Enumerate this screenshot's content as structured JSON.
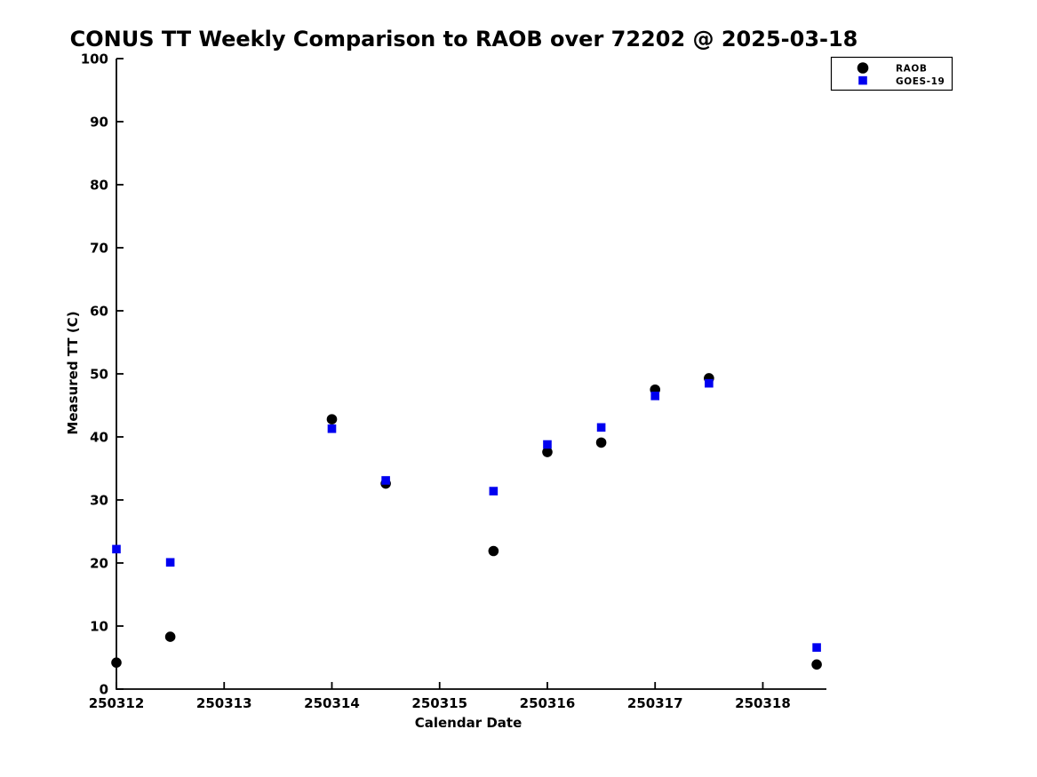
{
  "chart_data": {
    "type": "scatter",
    "title": "CONUS TT Weekly Comparison to RAOB over 72202 @ 2025-03-18",
    "xlabel": "Calendar Date",
    "ylabel": "Measured TT (C)",
    "xlim": [
      250312,
      250318.59
    ],
    "ylim": [
      0,
      100
    ],
    "x_ticks": [
      250312,
      250313,
      250314,
      250315,
      250316,
      250317,
      250318
    ],
    "y_ticks": [
      0,
      10,
      20,
      30,
      40,
      50,
      60,
      70,
      80,
      90,
      100
    ],
    "grid": false,
    "legend_position": "top-right",
    "axis_color": "#000000",
    "background_color": "#ffffff",
    "series": [
      {
        "name": "RAOB",
        "marker": "circle",
        "color": "#000000",
        "points": [
          [
            250312.0,
            4.2
          ],
          [
            250312.5,
            8.3
          ],
          [
            250314.0,
            42.8
          ],
          [
            250314.5,
            32.6
          ],
          [
            250315.5,
            21.9
          ],
          [
            250316.0,
            37.6
          ],
          [
            250316.5,
            39.1
          ],
          [
            250317.0,
            47.5
          ],
          [
            250317.5,
            49.3
          ],
          [
            250318.5,
            3.9
          ]
        ]
      },
      {
        "name": "GOES-19",
        "marker": "square",
        "color": "#0000f0",
        "points": [
          [
            250312.0,
            22.2
          ],
          [
            250312.5,
            20.1
          ],
          [
            250314.0,
            41.3
          ],
          [
            250314.5,
            33.1
          ],
          [
            250315.5,
            31.4
          ],
          [
            250316.0,
            38.8
          ],
          [
            250316.5,
            41.5
          ],
          [
            250317.0,
            46.5
          ],
          [
            250317.5,
            48.5
          ],
          [
            250318.5,
            6.6
          ]
        ]
      }
    ]
  }
}
